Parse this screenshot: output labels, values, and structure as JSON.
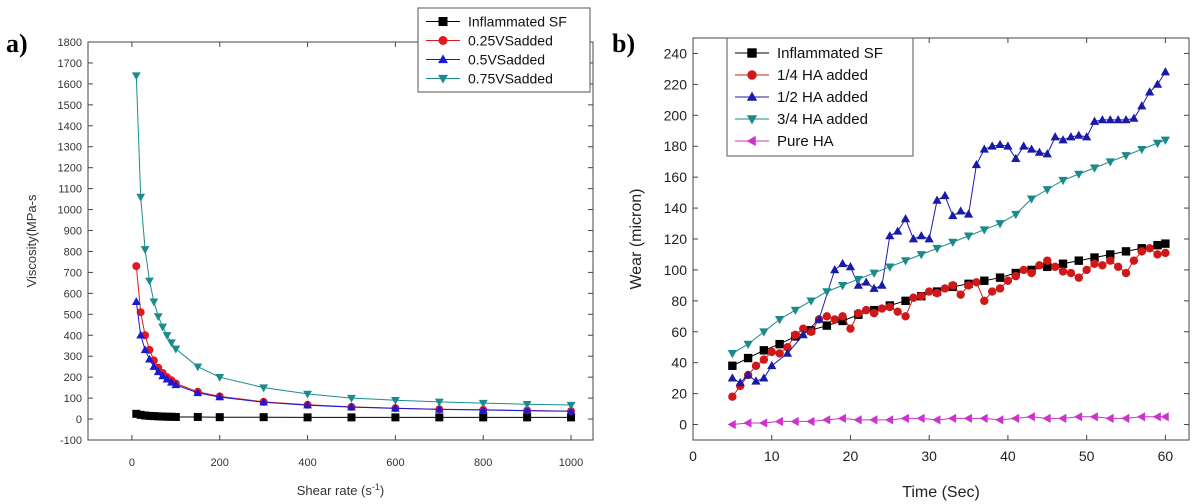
{
  "panels": {
    "a_label": "a)",
    "b_label": "b)"
  },
  "chart_data": [
    {
      "type": "line",
      "xlabel": "Shear rate (s",
      "xlabel_sup": "-1",
      "xlabel_end": ")",
      "ylabel": "Viscosity(MPa-s",
      "xlim": [
        -100,
        1050
      ],
      "ylim": [
        -100,
        1800
      ],
      "x_ticks": [
        0,
        200,
        400,
        600,
        800,
        1000
      ],
      "y_ticks": [
        -100,
        0,
        100,
        200,
        300,
        400,
        500,
        600,
        700,
        800,
        900,
        1000,
        1100,
        1200,
        1300,
        1400,
        1500,
        1600,
        1700,
        1800
      ],
      "legend_position": "top-right",
      "series": [
        {
          "name": "Inflammated SF",
          "marker": "square",
          "color": "#000000",
          "x": [
            10,
            20,
            30,
            40,
            50,
            60,
            70,
            80,
            90,
            100,
            150,
            200,
            300,
            400,
            500,
            600,
            700,
            800,
            900,
            1000
          ],
          "y": [
            25,
            20,
            17,
            15,
            14,
            13,
            12,
            11,
            11,
            10,
            10,
            9,
            9,
            8,
            8,
            8,
            8,
            8,
            8,
            8
          ]
        },
        {
          "name": "0.25VSadded",
          "marker": "circle",
          "color": "#e0191e",
          "x": [
            10,
            20,
            30,
            40,
            50,
            60,
            70,
            80,
            90,
            100,
            150,
            200,
            300,
            400,
            500,
            600,
            700,
            800,
            900,
            1000
          ],
          "y": [
            730,
            510,
            400,
            330,
            280,
            245,
            220,
            200,
            185,
            170,
            130,
            108,
            82,
            68,
            58,
            52,
            47,
            44,
            41,
            38
          ]
        },
        {
          "name": "0.5VSadded",
          "marker": "triangle-up",
          "color": "#1a1ad6",
          "x": [
            10,
            20,
            30,
            40,
            50,
            60,
            70,
            80,
            90,
            100,
            150,
            200,
            300,
            400,
            500,
            600,
            700,
            800,
            900,
            1000
          ],
          "y": [
            560,
            400,
            330,
            285,
            250,
            225,
            205,
            190,
            175,
            163,
            125,
            105,
            80,
            66,
            57,
            51,
            46,
            43,
            40,
            37
          ]
        },
        {
          "name": "0.75VSadded",
          "marker": "triangle-down",
          "color": "#1a8c8c",
          "x": [
            10,
            20,
            30,
            40,
            50,
            60,
            70,
            80,
            90,
            100,
            150,
            200,
            300,
            400,
            500,
            600,
            700,
            800,
            900,
            1000
          ],
          "y": [
            1640,
            1060,
            810,
            660,
            560,
            490,
            440,
            400,
            365,
            335,
            250,
            200,
            150,
            120,
            100,
            90,
            82,
            76,
            71,
            67
          ]
        }
      ]
    },
    {
      "type": "line",
      "xlabel": "Time (Sec)",
      "ylabel": "Wear (micron)",
      "xlim": [
        0,
        63
      ],
      "ylim": [
        -10,
        250
      ],
      "x_ticks": [
        0,
        10,
        20,
        30,
        40,
        50,
        60
      ],
      "y_ticks": [
        0,
        20,
        40,
        60,
        80,
        100,
        120,
        140,
        160,
        180,
        200,
        220,
        240
      ],
      "legend_position": "top-left",
      "series": [
        {
          "name": "Inflammated SF",
          "marker": "square",
          "color": "#000000",
          "x": [
            5,
            7,
            9,
            11,
            13,
            15,
            17,
            19,
            21,
            23,
            25,
            27,
            29,
            31,
            33,
            35,
            37,
            39,
            41,
            43,
            45,
            47,
            49,
            51,
            53,
            55,
            57,
            59,
            60
          ],
          "y": [
            38,
            43,
            48,
            52,
            57,
            61,
            64,
            67,
            71,
            74,
            77,
            80,
            83,
            86,
            89,
            91,
            93,
            95,
            98,
            100,
            102,
            104,
            106,
            108,
            110,
            112,
            114,
            116,
            117
          ]
        },
        {
          "name": "1/4 HA added",
          "marker": "circle",
          "color": "#d01818",
          "x": [
            5,
            6,
            7,
            8,
            9,
            10,
            11,
            12,
            13,
            14,
            15,
            16,
            17,
            18,
            19,
            20,
            21,
            22,
            23,
            24,
            25,
            26,
            27,
            28,
            29,
            30,
            31,
            32,
            33,
            34,
            35,
            36,
            37,
            38,
            39,
            40,
            41,
            42,
            43,
            44,
            45,
            46,
            47,
            48,
            49,
            50,
            51,
            52,
            53,
            54,
            55,
            56,
            57,
            58,
            59,
            60
          ],
          "y": [
            18,
            25,
            32,
            38,
            42,
            47,
            46,
            50,
            58,
            62,
            60,
            68,
            70,
            68,
            70,
            62,
            72,
            74,
            72,
            75,
            76,
            73,
            70,
            82,
            83,
            86,
            85,
            88,
            90,
            84,
            90,
            92,
            80,
            86,
            88,
            93,
            96,
            100,
            98,
            103,
            106,
            102,
            99,
            98,
            95,
            100,
            104,
            103,
            106,
            102,
            98,
            106,
            112,
            114,
            110,
            111
          ]
        },
        {
          "name": "1/2 HA added",
          "marker": "triangle-up",
          "color": "#1a1aaa",
          "x": [
            5,
            6,
            7,
            8,
            9,
            10,
            12,
            14,
            16,
            18,
            19,
            20,
            21,
            22,
            23,
            24,
            25,
            26,
            27,
            28,
            29,
            30,
            31,
            32,
            33,
            34,
            35,
            36,
            37,
            38,
            39,
            40,
            41,
            42,
            43,
            44,
            45,
            46,
            47,
            48,
            49,
            50,
            51,
            52,
            53,
            54,
            55,
            56,
            57,
            58,
            59,
            60
          ],
          "y": [
            30,
            27,
            32,
            28,
            30,
            38,
            46,
            58,
            68,
            100,
            104,
            102,
            90,
            92,
            88,
            90,
            122,
            125,
            133,
            120,
            122,
            120,
            145,
            148,
            135,
            138,
            136,
            168,
            178,
            180,
            181,
            180,
            172,
            180,
            178,
            176,
            175,
            186,
            184,
            186,
            187,
            186,
            196,
            197,
            197,
            197,
            197,
            198,
            206,
            215,
            220,
            228
          ]
        },
        {
          "name": "3/4 HA added",
          "marker": "triangle-down",
          "color": "#1a8a8a",
          "x": [
            5,
            7,
            9,
            11,
            13,
            15,
            17,
            19,
            21,
            23,
            25,
            27,
            29,
            31,
            33,
            35,
            37,
            39,
            41,
            43,
            45,
            47,
            49,
            51,
            53,
            55,
            57,
            59,
            60
          ],
          "y": [
            46,
            52,
            60,
            68,
            74,
            80,
            86,
            90,
            94,
            98,
            102,
            106,
            110,
            114,
            118,
            122,
            126,
            130,
            136,
            146,
            152,
            158,
            162,
            166,
            170,
            174,
            178,
            182,
            184
          ]
        },
        {
          "name": "Pure HA",
          "marker": "triangle-left",
          "color": "#cc33cc",
          "x": [
            5,
            7,
            9,
            11,
            13,
            15,
            17,
            19,
            21,
            23,
            25,
            27,
            29,
            31,
            33,
            35,
            37,
            39,
            41,
            43,
            45,
            47,
            49,
            51,
            53,
            55,
            57,
            59,
            60
          ],
          "y": [
            0,
            1,
            1,
            2,
            2,
            2,
            3,
            4,
            3,
            3,
            3,
            4,
            4,
            3,
            4,
            4,
            4,
            3,
            4,
            5,
            4,
            4,
            5,
            5,
            4,
            4,
            5,
            5,
            5
          ]
        }
      ]
    }
  ]
}
